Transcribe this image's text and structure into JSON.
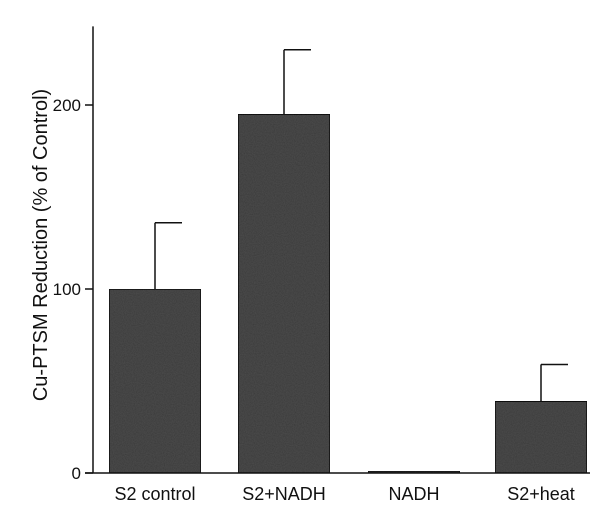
{
  "chart_data": {
    "type": "bar",
    "ylabel": "Cu-PTSM Reduction (% of Control)",
    "ylim": [
      0,
      240
    ],
    "yticks": [
      0,
      100,
      200
    ],
    "categories": [
      "S2 control",
      "S2+NADH",
      "NADH",
      "S2+heat"
    ],
    "values": [
      100,
      195,
      1,
      39
    ],
    "errors": [
      36,
      35,
      0,
      20
    ],
    "bar_color": "#4d4d4d",
    "grid": false
  }
}
